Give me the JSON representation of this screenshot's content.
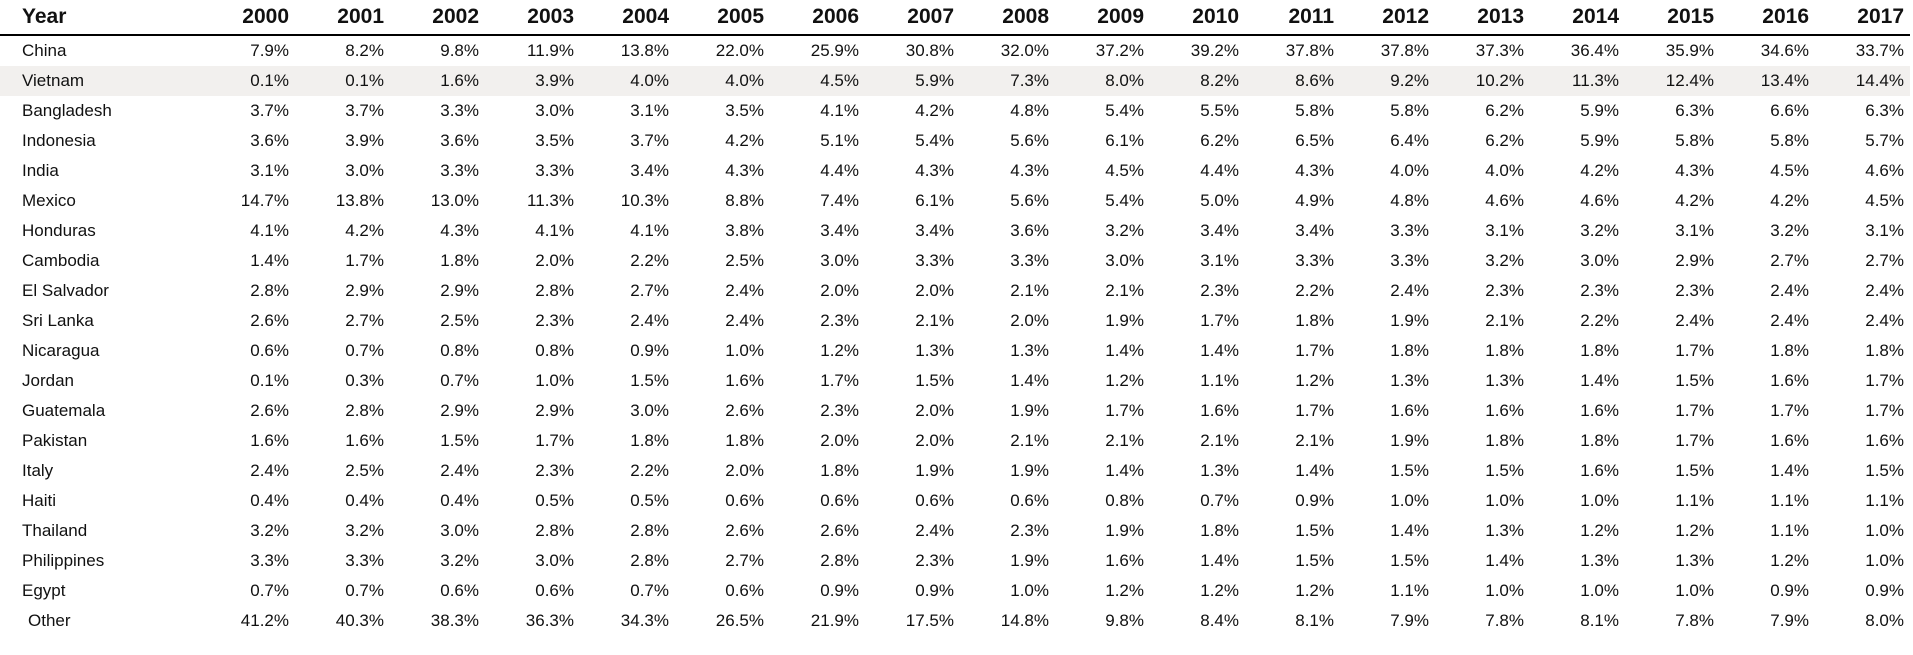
{
  "chart_data": {
    "type": "table",
    "header_label": "Year",
    "columns": [
      "2000",
      "2001",
      "2002",
      "2003",
      "2004",
      "2005",
      "2006",
      "2007",
      "2008",
      "2009",
      "2010",
      "2011",
      "2012",
      "2013",
      "2014",
      "2015",
      "2016",
      "2017"
    ],
    "rows": [
      {
        "name": "China",
        "values": [
          "7.9%",
          "8.2%",
          "9.8%",
          "11.9%",
          "13.8%",
          "22.0%",
          "25.9%",
          "30.8%",
          "32.0%",
          "37.2%",
          "39.2%",
          "37.8%",
          "37.8%",
          "37.3%",
          "36.4%",
          "35.9%",
          "34.6%",
          "33.7%"
        ]
      },
      {
        "name": "Vietnam",
        "values": [
          "0.1%",
          "0.1%",
          "1.6%",
          "3.9%",
          "4.0%",
          "4.0%",
          "4.5%",
          "5.9%",
          "7.3%",
          "8.0%",
          "8.2%",
          "8.6%",
          "9.2%",
          "10.2%",
          "11.3%",
          "12.4%",
          "13.4%",
          "14.4%"
        ]
      },
      {
        "name": "Bangladesh",
        "values": [
          "3.7%",
          "3.7%",
          "3.3%",
          "3.0%",
          "3.1%",
          "3.5%",
          "4.1%",
          "4.2%",
          "4.8%",
          "5.4%",
          "5.5%",
          "5.8%",
          "5.8%",
          "6.2%",
          "5.9%",
          "6.3%",
          "6.6%",
          "6.3%"
        ]
      },
      {
        "name": "Indonesia",
        "values": [
          "3.6%",
          "3.9%",
          "3.6%",
          "3.5%",
          "3.7%",
          "4.2%",
          "5.1%",
          "5.4%",
          "5.6%",
          "6.1%",
          "6.2%",
          "6.5%",
          "6.4%",
          "6.2%",
          "5.9%",
          "5.8%",
          "5.8%",
          "5.7%"
        ]
      },
      {
        "name": "India",
        "values": [
          "3.1%",
          "3.0%",
          "3.3%",
          "3.3%",
          "3.4%",
          "4.3%",
          "4.4%",
          "4.3%",
          "4.3%",
          "4.5%",
          "4.4%",
          "4.3%",
          "4.0%",
          "4.0%",
          "4.2%",
          "4.3%",
          "4.5%",
          "4.6%"
        ]
      },
      {
        "name": "Mexico",
        "values": [
          "14.7%",
          "13.8%",
          "13.0%",
          "11.3%",
          "10.3%",
          "8.8%",
          "7.4%",
          "6.1%",
          "5.6%",
          "5.4%",
          "5.0%",
          "4.9%",
          "4.8%",
          "4.6%",
          "4.6%",
          "4.2%",
          "4.2%",
          "4.5%"
        ]
      },
      {
        "name": "Honduras",
        "values": [
          "4.1%",
          "4.2%",
          "4.3%",
          "4.1%",
          "4.1%",
          "3.8%",
          "3.4%",
          "3.4%",
          "3.6%",
          "3.2%",
          "3.4%",
          "3.4%",
          "3.3%",
          "3.1%",
          "3.2%",
          "3.1%",
          "3.2%",
          "3.1%"
        ]
      },
      {
        "name": "Cambodia",
        "values": [
          "1.4%",
          "1.7%",
          "1.8%",
          "2.0%",
          "2.2%",
          "2.5%",
          "3.0%",
          "3.3%",
          "3.3%",
          "3.0%",
          "3.1%",
          "3.3%",
          "3.3%",
          "3.2%",
          "3.0%",
          "2.9%",
          "2.7%",
          "2.7%"
        ]
      },
      {
        "name": "El Salvador",
        "values": [
          "2.8%",
          "2.9%",
          "2.9%",
          "2.8%",
          "2.7%",
          "2.4%",
          "2.0%",
          "2.0%",
          "2.1%",
          "2.1%",
          "2.3%",
          "2.2%",
          "2.4%",
          "2.3%",
          "2.3%",
          "2.3%",
          "2.4%",
          "2.4%"
        ]
      },
      {
        "name": "Sri Lanka",
        "values": [
          "2.6%",
          "2.7%",
          "2.5%",
          "2.3%",
          "2.4%",
          "2.4%",
          "2.3%",
          "2.1%",
          "2.0%",
          "1.9%",
          "1.7%",
          "1.8%",
          "1.9%",
          "2.1%",
          "2.2%",
          "2.4%",
          "2.4%",
          "2.4%"
        ]
      },
      {
        "name": "Nicaragua",
        "values": [
          "0.6%",
          "0.7%",
          "0.8%",
          "0.8%",
          "0.9%",
          "1.0%",
          "1.2%",
          "1.3%",
          "1.3%",
          "1.4%",
          "1.4%",
          "1.7%",
          "1.8%",
          "1.8%",
          "1.8%",
          "1.7%",
          "1.8%",
          "1.8%"
        ]
      },
      {
        "name": "Jordan",
        "values": [
          "0.1%",
          "0.3%",
          "0.7%",
          "1.0%",
          "1.5%",
          "1.6%",
          "1.7%",
          "1.5%",
          "1.4%",
          "1.2%",
          "1.1%",
          "1.2%",
          "1.3%",
          "1.3%",
          "1.4%",
          "1.5%",
          "1.6%",
          "1.7%"
        ]
      },
      {
        "name": "Guatemala",
        "values": [
          "2.6%",
          "2.8%",
          "2.9%",
          "2.9%",
          "3.0%",
          "2.6%",
          "2.3%",
          "2.0%",
          "1.9%",
          "1.7%",
          "1.6%",
          "1.7%",
          "1.6%",
          "1.6%",
          "1.6%",
          "1.7%",
          "1.7%",
          "1.7%"
        ]
      },
      {
        "name": "Pakistan",
        "values": [
          "1.6%",
          "1.6%",
          "1.5%",
          "1.7%",
          "1.8%",
          "1.8%",
          "2.0%",
          "2.0%",
          "2.1%",
          "2.1%",
          "2.1%",
          "2.1%",
          "1.9%",
          "1.8%",
          "1.8%",
          "1.7%",
          "1.6%",
          "1.6%"
        ]
      },
      {
        "name": "Italy",
        "values": [
          "2.4%",
          "2.5%",
          "2.4%",
          "2.3%",
          "2.2%",
          "2.0%",
          "1.8%",
          "1.9%",
          "1.9%",
          "1.4%",
          "1.3%",
          "1.4%",
          "1.5%",
          "1.5%",
          "1.6%",
          "1.5%",
          "1.4%",
          "1.5%"
        ]
      },
      {
        "name": "Haiti",
        "values": [
          "0.4%",
          "0.4%",
          "0.4%",
          "0.5%",
          "0.5%",
          "0.6%",
          "0.6%",
          "0.6%",
          "0.6%",
          "0.8%",
          "0.7%",
          "0.9%",
          "1.0%",
          "1.0%",
          "1.0%",
          "1.1%",
          "1.1%",
          "1.1%"
        ]
      },
      {
        "name": "Thailand",
        "values": [
          "3.2%",
          "3.2%",
          "3.0%",
          "2.8%",
          "2.8%",
          "2.6%",
          "2.6%",
          "2.4%",
          "2.3%",
          "1.9%",
          "1.8%",
          "1.5%",
          "1.4%",
          "1.3%",
          "1.2%",
          "1.2%",
          "1.1%",
          "1.0%"
        ]
      },
      {
        "name": "Philippines",
        "values": [
          "3.3%",
          "3.3%",
          "3.2%",
          "3.0%",
          "2.8%",
          "2.7%",
          "2.8%",
          "2.3%",
          "1.9%",
          "1.6%",
          "1.4%",
          "1.5%",
          "1.5%",
          "1.4%",
          "1.3%",
          "1.3%",
          "1.2%",
          "1.0%"
        ]
      },
      {
        "name": "Egypt",
        "values": [
          "0.7%",
          "0.7%",
          "0.6%",
          "0.6%",
          "0.7%",
          "0.6%",
          "0.9%",
          "0.9%",
          "1.0%",
          "1.2%",
          "1.2%",
          "1.2%",
          "1.1%",
          "1.0%",
          "1.0%",
          "1.0%",
          "0.9%",
          "0.9%"
        ]
      },
      {
        "name": "Other",
        "values": [
          "41.2%",
          "40.3%",
          "38.3%",
          "36.3%",
          "34.3%",
          "26.5%",
          "21.9%",
          "17.5%",
          "14.8%",
          "9.8%",
          "8.4%",
          "8.1%",
          "7.9%",
          "7.8%",
          "8.1%",
          "7.8%",
          "7.9%",
          "8.0%"
        ]
      }
    ],
    "shaded_row": "Vietnam",
    "shade_color": "#f2f0ee"
  }
}
